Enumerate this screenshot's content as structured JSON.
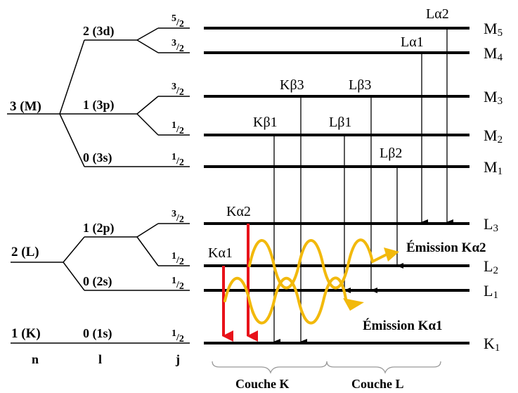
{
  "tree": {
    "n3": "3 (M)",
    "n2": "2 (L)",
    "n1": "1 (K)",
    "l_3d": "2 (3d)",
    "l_3p": "1 (3p)",
    "l_3s": "0 (3s)",
    "l_2p": "1 (2p)",
    "l_2s": "0 (2s)",
    "l_1s": "0 (1s)",
    "col_n": "n",
    "col_l": "l",
    "col_j": "j"
  },
  "levels": [
    {
      "name": "M",
      "sub": "5",
      "j": "5/2"
    },
    {
      "name": "M",
      "sub": "4",
      "j": "3/2"
    },
    {
      "name": "M",
      "sub": "3",
      "j": "3/2"
    },
    {
      "name": "M",
      "sub": "2",
      "j": "1/2"
    },
    {
      "name": "M",
      "sub": "1",
      "j": "1/2"
    },
    {
      "name": "L",
      "sub": "3",
      "j": "3/2"
    },
    {
      "name": "L",
      "sub": "2",
      "j": "1/2"
    },
    {
      "name": "L",
      "sub": "1",
      "j": "1/2"
    },
    {
      "name": "K",
      "sub": "1",
      "j": "1/2"
    }
  ],
  "transitions": [
    {
      "label": "Kα2"
    },
    {
      "label": "Kα1"
    },
    {
      "label": "Kβ1"
    },
    {
      "label": "Kβ3"
    },
    {
      "label": "Lβ1"
    },
    {
      "label": "Lβ3"
    },
    {
      "label": "Lβ2"
    },
    {
      "label": "Lα1"
    },
    {
      "label": "Lα2"
    }
  ],
  "emissions": {
    "ka2": "Émission Kα2",
    "ka1": "Émission Kα1"
  },
  "groups": {
    "couche_k": "Couche K",
    "couche_l": "Couche L"
  },
  "colors": {
    "red_arrow": "#e8121a",
    "wave": "#f2b90c"
  }
}
